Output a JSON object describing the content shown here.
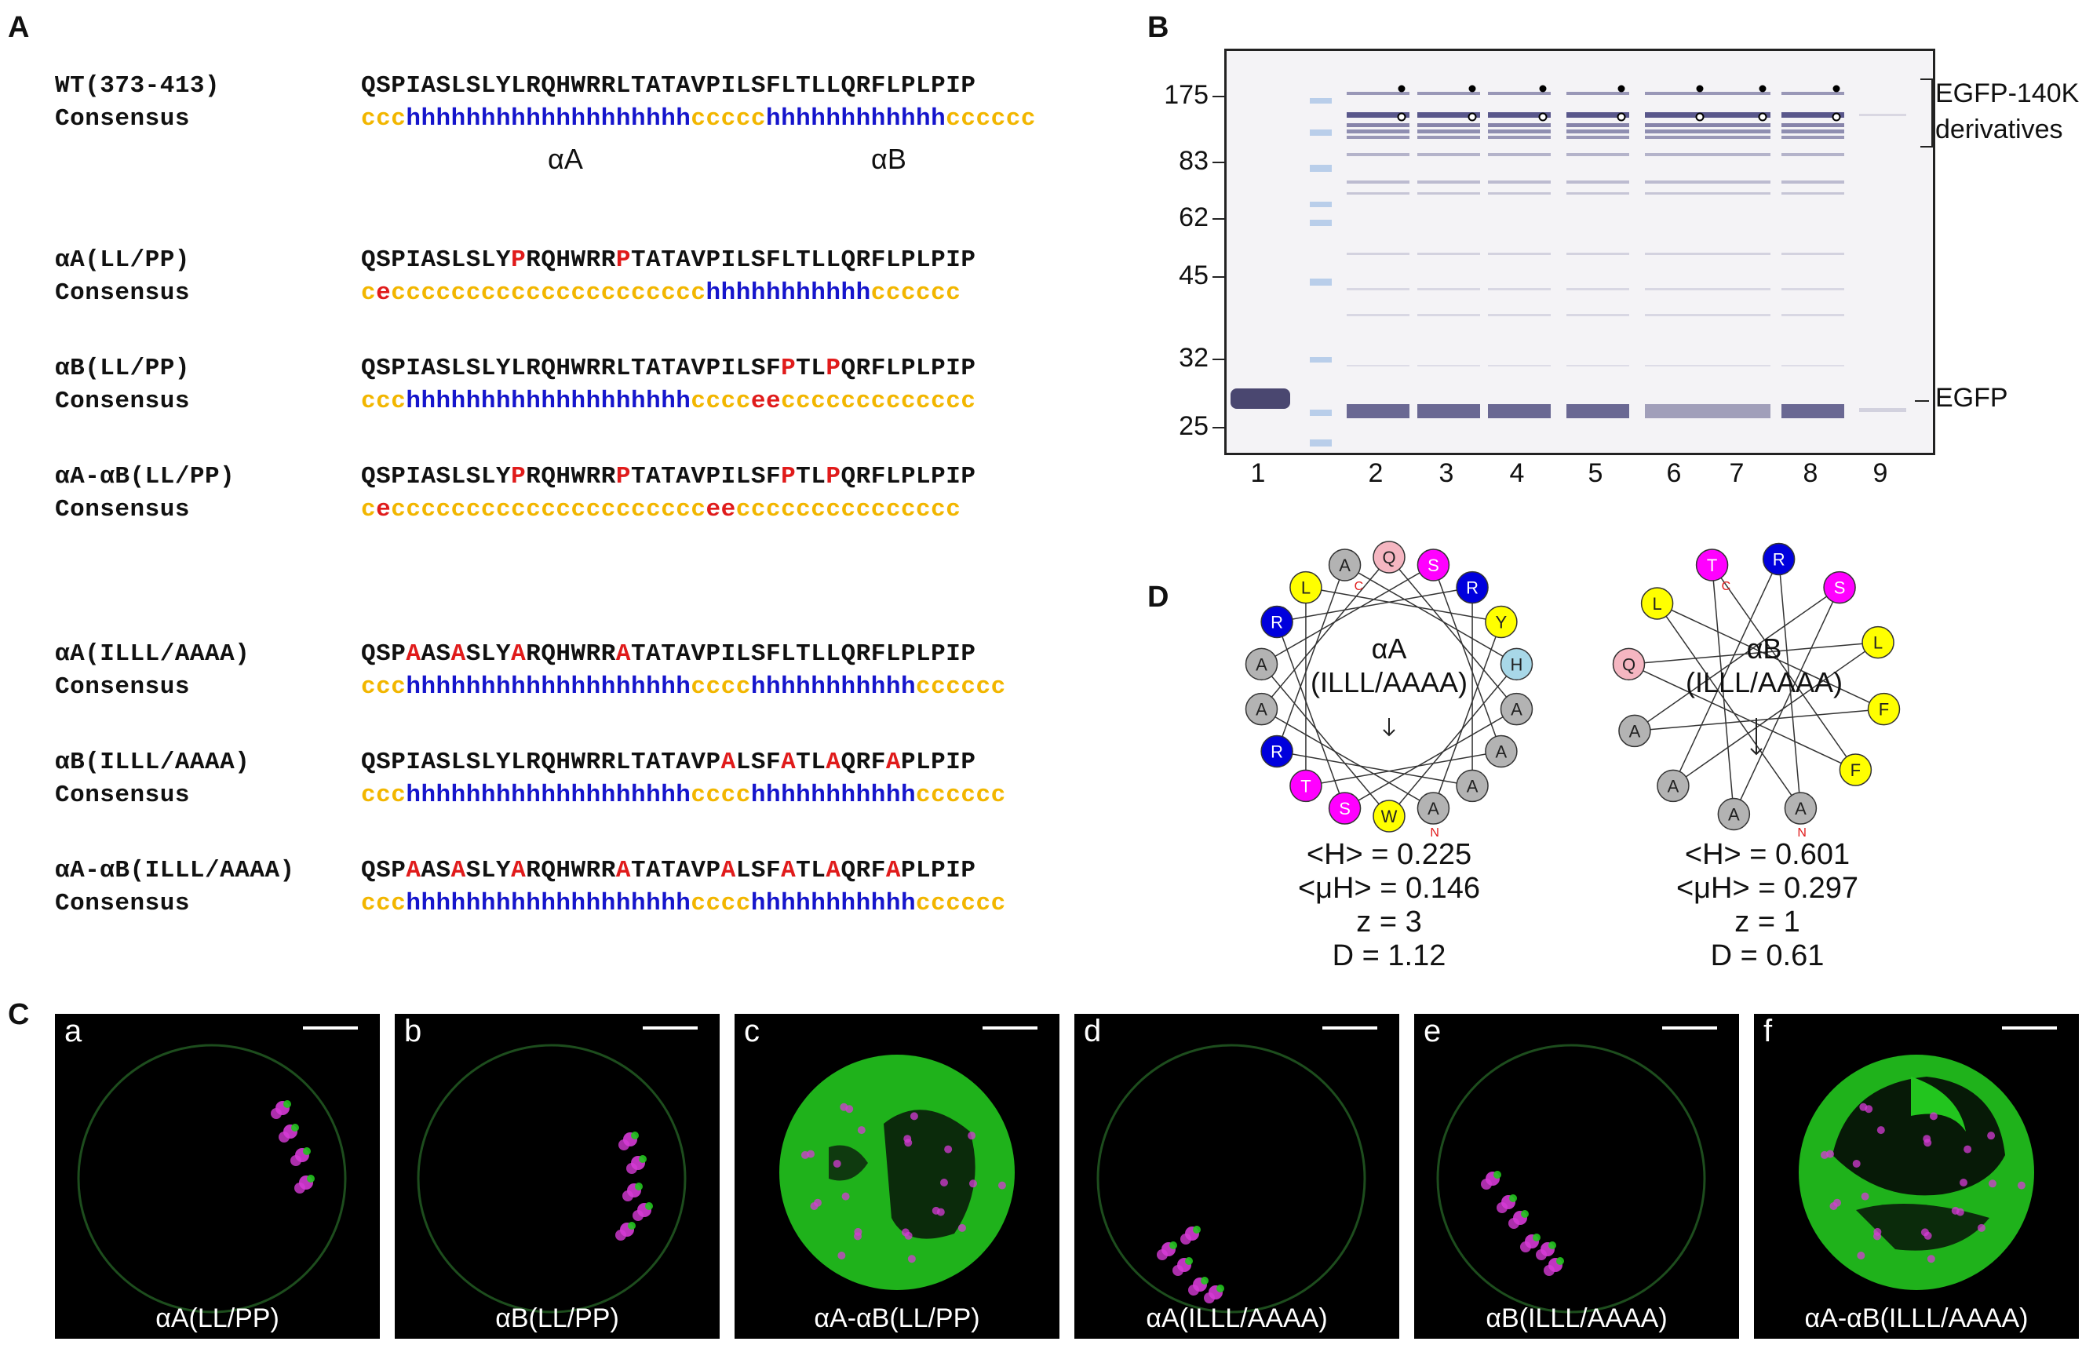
{
  "panels": {
    "a": "A",
    "b": "B",
    "c": "C",
    "d": "D"
  },
  "panel_a": {
    "rows": [
      {
        "name": "WT(373-413)",
        "seq": "QSPIASLSLYLRQHWRRLTATAVPILSFLTLLQRFLPLPIP",
        "mut_positions": [],
        "consensus": "ccchhhhhhhhhhhhhhhhhhhccccchhhhhhhhhhhhcccccc"
      },
      {
        "name": "αA(LL/PP)",
        "seq": "QSPIASLSLYPRQHWRRPTATAVPILSFLTLLQRFLPLPIP",
        "mut_positions": [
          10,
          17
        ],
        "consensus": "ceccccccccccccccccccccchhhhhhhhhhhcccccc"
      },
      {
        "name": "αB(LL/PP)",
        "seq": "QSPIASLSLYLRQHWRRLTATAVPILSFPTLPQRFLPLPIP",
        "mut_positions": [
          28,
          31
        ],
        "consensus": "ccchhhhhhhhhhhhhhhhhhhcccceeccccccccccccc"
      },
      {
        "name": "αA-αB(LL/PP)",
        "seq": "QSPIASLSLYPRQHWRRPTATAVPILSFPTLPQRFLPLPIP",
        "mut_positions": [
          10,
          17,
          28,
          31
        ],
        "consensus": "ceccccccccccccccccccccceeccccccccccccccc"
      },
      {
        "name": "αA(ILLL/AAAA)",
        "seq": "QSPAASASLYARQHWRRATATAVPILSFLTLLQRFLPLPIP",
        "mut_positions": [
          3,
          6,
          10,
          17
        ],
        "consensus": "ccchhhhhhhhhhhhhhhhhhhcccchhhhhhhhhhhcccccc"
      },
      {
        "name": "αB(ILLL/AAAA)",
        "seq": "QSPIASLSLYLRQHWRRLTATAVPALSFATLAQRFAPLPIP",
        "mut_positions": [
          24,
          28,
          31,
          35
        ],
        "consensus": "ccchhhhhhhhhhhhhhhhhhhcccchhhhhhhhhhhcccccc"
      },
      {
        "name": "αA-αB(ILLL/AAAA)",
        "seq": "QSPAASASLYARQHWRRATATAVPALSFATLAQRFAPLPIP",
        "mut_positions": [
          3,
          6,
          10,
          17,
          24,
          28,
          31,
          35
        ],
        "consensus": "ccchhhhhhhhhhhhhhhhhhhcccchhhhhhhhhhhcccccc"
      }
    ],
    "helix_labels": {
      "a": "αA",
      "b": "αB"
    },
    "colors": {
      "coil": "#f2b600",
      "helix": "#1515cc",
      "strand": "#e01b1b",
      "mutation": "#e01b1b"
    }
  },
  "panel_b": {
    "mw_markers": [
      "175",
      "83",
      "62",
      "45",
      "32",
      "25"
    ],
    "lanes": [
      "1",
      "2",
      "3",
      "4",
      "5",
      "6",
      "7",
      "8",
      "9"
    ],
    "labels": {
      "egfp140k_line1": "EGFP-140K",
      "egfp140k_line2": "derivatives",
      "egfp": "EGFP"
    }
  },
  "panel_d": {
    "wheel_a": {
      "title_line1": "αA",
      "title_line2": "(ILLL/AAAA)",
      "residues": [
        "A",
        "Q",
        "S",
        "R",
        "Y",
        "H",
        "A",
        "A",
        "A",
        "A",
        "W",
        "S",
        "T",
        "R",
        "A",
        "A",
        "R",
        "L"
      ],
      "terminal_c": "C",
      "terminal_n": "N",
      "stats": [
        "<H> = 0.225",
        "<μH> = 0.146",
        "z = 3",
        "D = 1.12"
      ]
    },
    "wheel_b": {
      "title_line1": "αB",
      "title_line2": "(ILLL/AAAA)",
      "residues": [
        "T",
        "R",
        "S",
        "L",
        "F",
        "F",
        "A",
        "A",
        "A",
        "A",
        "Q",
        "L"
      ],
      "terminal_c": "C",
      "terminal_n": "N",
      "stats": [
        "<H> = 0.601",
        "<μH> = 0.297",
        "z = 1",
        "D = 0.61"
      ]
    },
    "residue_colors": {
      "hydrophobic": "#ffff00",
      "small": "#b3b3b3",
      "polar_uncharged": "#ff00ff",
      "positive": "#0000dd",
      "amide": "#f5b6c1",
      "histidine": "#a8d8e8"
    }
  },
  "panel_c": {
    "images": [
      {
        "letter": "a",
        "caption": "αA(LL/PP)"
      },
      {
        "letter": "b",
        "caption": "αB(LL/PP)"
      },
      {
        "letter": "c",
        "caption": "αA-αB(LL/PP)"
      },
      {
        "letter": "d",
        "caption": "αA(ILLL/AAAA)"
      },
      {
        "letter": "e",
        "caption": "αB(ILLL/AAAA)"
      },
      {
        "letter": "f",
        "caption": "αA-αB(ILLL/AAAA)"
      }
    ],
    "colors": {
      "gfp": "#22c51e",
      "magenta": "#d63bd6"
    }
  }
}
